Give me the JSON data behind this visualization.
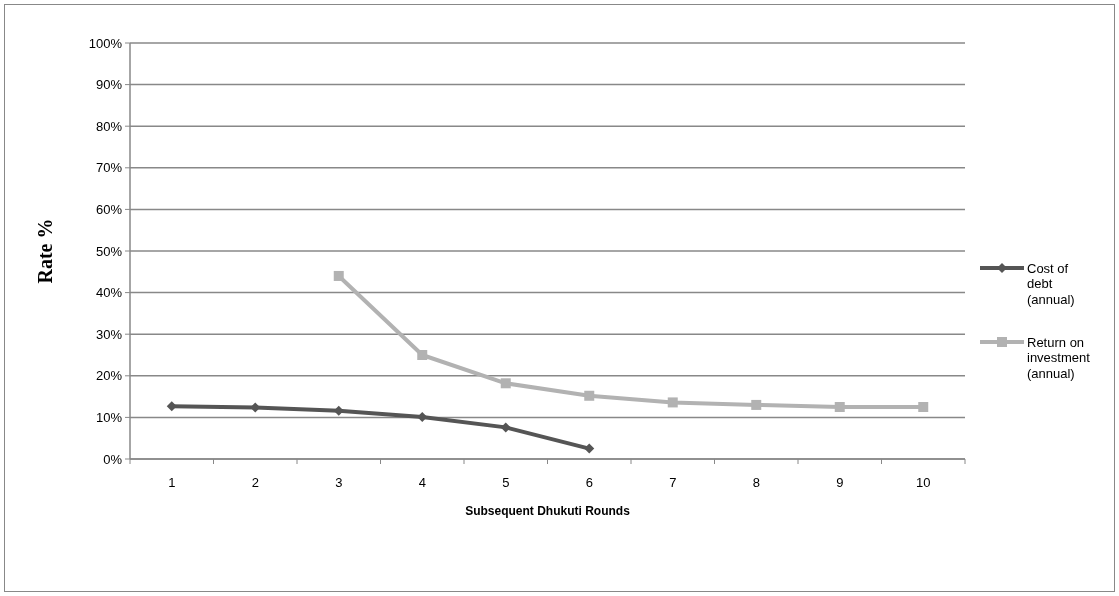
{
  "chart_data": {
    "type": "line",
    "xlabel": "Subsequent Dhukuti Rounds",
    "ylabel": "Rate %",
    "categories": [
      "1",
      "2",
      "3",
      "4",
      "5",
      "6",
      "7",
      "8",
      "9",
      "10"
    ],
    "series": [
      {
        "name": "Cost of debt (annual)",
        "color": "#555555",
        "marker": "diamond",
        "values": [
          12.7,
          12.4,
          11.6,
          10.1,
          7.6,
          2.5,
          null,
          null,
          null,
          null
        ]
      },
      {
        "name": "Return on investment (annual)",
        "color": "#b2b2b2",
        "marker": "square",
        "values": [
          null,
          null,
          44,
          25,
          18.2,
          15.2,
          13.6,
          13.0,
          12.5,
          12.5
        ]
      }
    ],
    "ylim": [
      0,
      100
    ],
    "yticks": [
      {
        "value": 0,
        "label": "0%"
      },
      {
        "value": 10,
        "label": "10%"
      },
      {
        "value": 20,
        "label": "20%"
      },
      {
        "value": 30,
        "label": "30%"
      },
      {
        "value": 40,
        "label": "40%"
      },
      {
        "value": 50,
        "label": "50%"
      },
      {
        "value": 60,
        "label": "60%"
      },
      {
        "value": 70,
        "label": "70%"
      },
      {
        "value": 80,
        "label": "80%"
      },
      {
        "value": 90,
        "label": "90%"
      },
      {
        "value": 100,
        "label": "100%"
      }
    ],
    "grid": "y",
    "legend": "right",
    "line_style": "solid"
  }
}
